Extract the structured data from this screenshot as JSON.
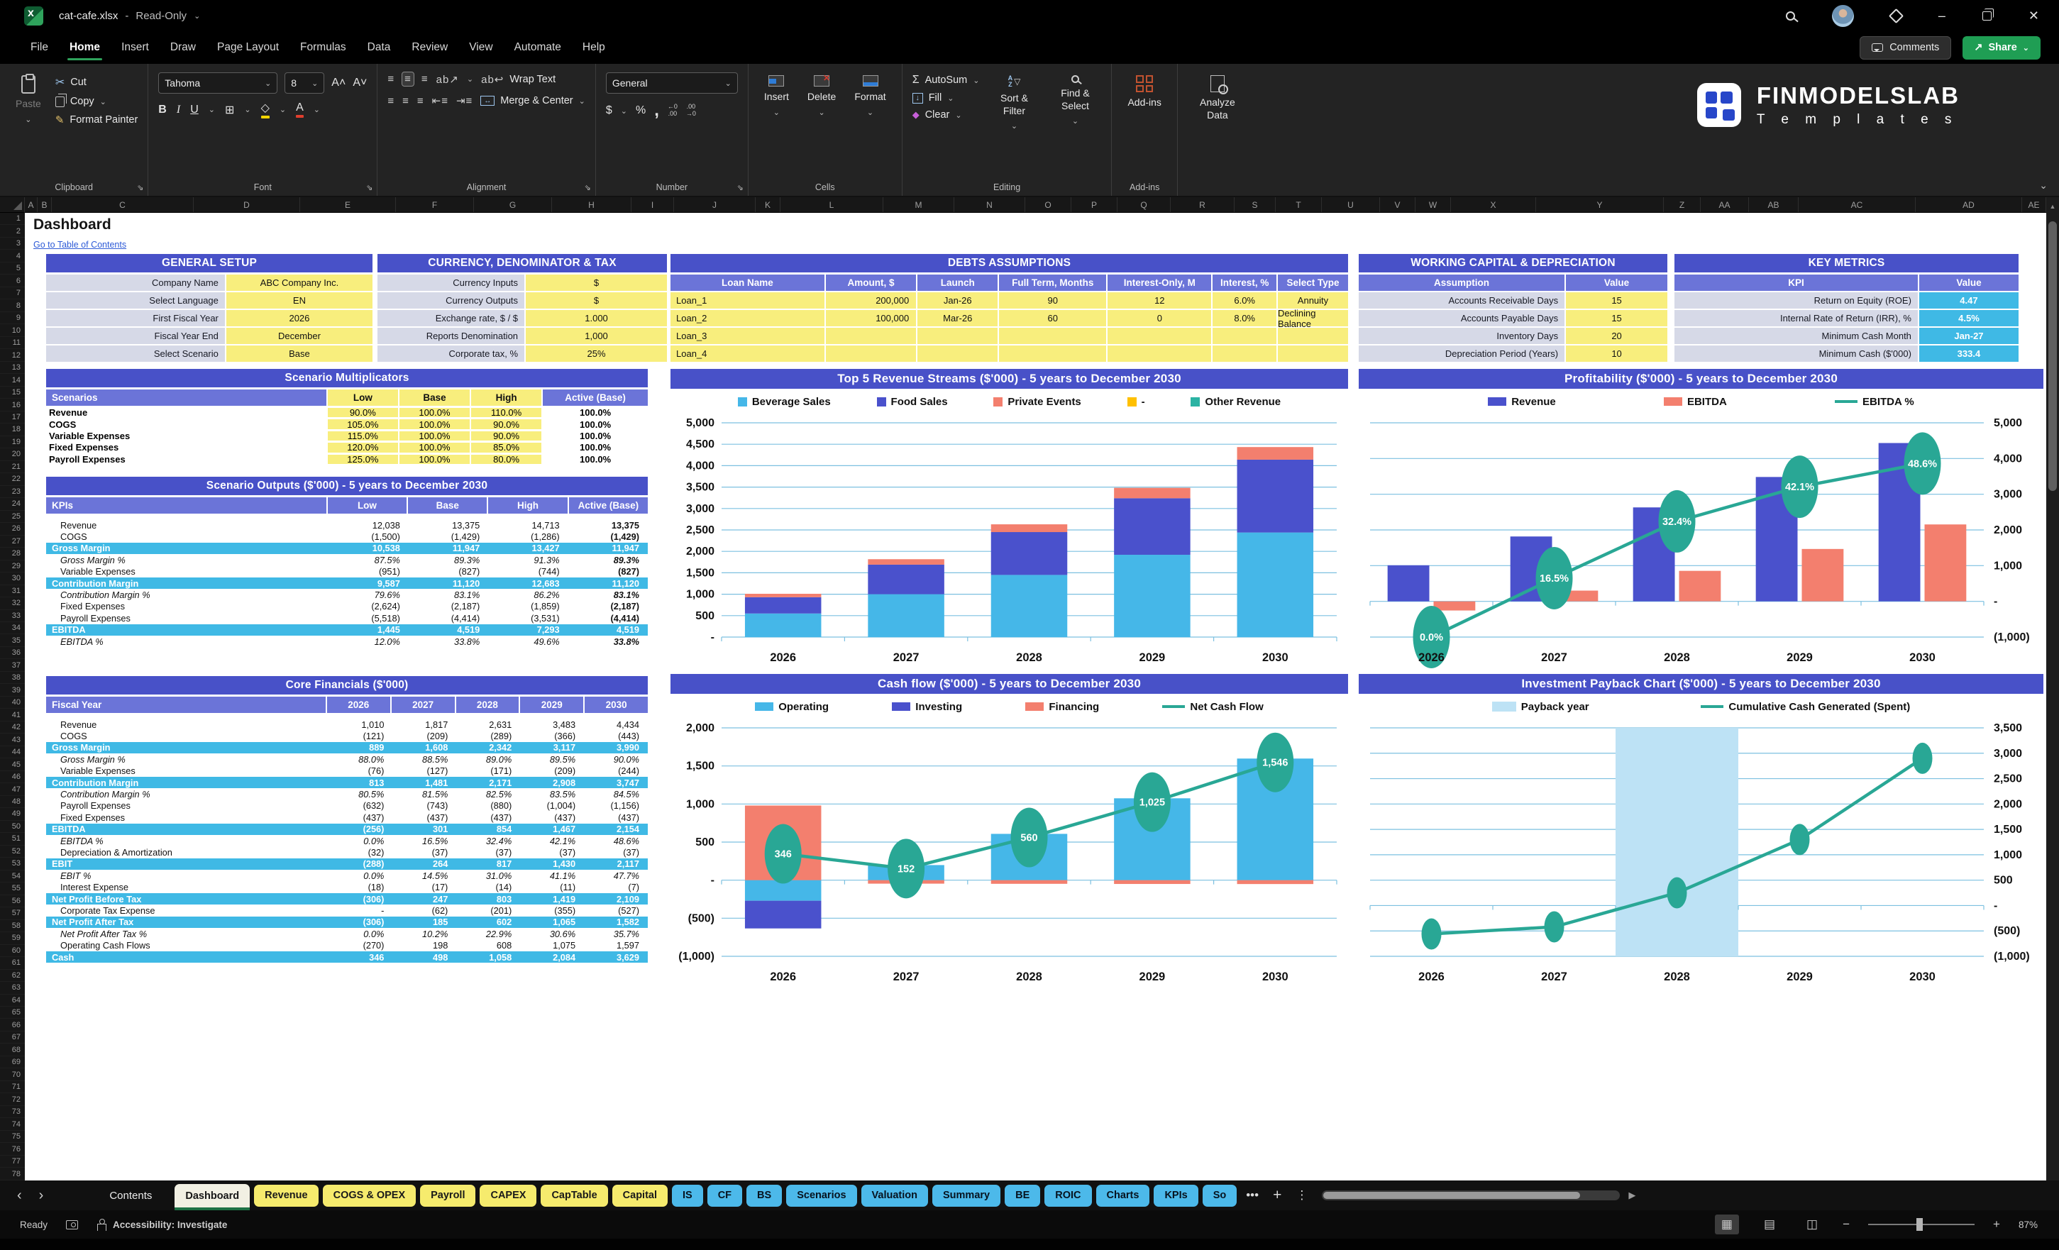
{
  "window": {
    "title": "cat-cafe.xlsx",
    "separator": "-",
    "mode": "Read-Only"
  },
  "icons": {
    "chev": "⌄",
    "up": "▲",
    "left": "‹",
    "right": "›",
    "more": "•••",
    "plus": "+",
    "kebab": "⋮",
    "scroll_right": "▶",
    "collapse": "⌄",
    "minimize": "–",
    "close": "✕"
  },
  "menu": {
    "items": [
      "File",
      "Home",
      "Insert",
      "Draw",
      "Page Layout",
      "Formulas",
      "Data",
      "Review",
      "View",
      "Automate",
      "Help"
    ],
    "active_index": 1
  },
  "actions": {
    "comments": "Comments",
    "share": "Share"
  },
  "ribbon": {
    "clipboard": {
      "paste": "Paste",
      "cut": "Cut",
      "copy": "Copy",
      "format_painter": "Format Painter",
      "label": "Clipboard"
    },
    "font": {
      "family": "Tahoma",
      "size": "8",
      "bold": "B",
      "italic": "I",
      "underline": "U",
      "label": "Font"
    },
    "alignment": {
      "wrap": "Wrap Text",
      "merge": "Merge & Center",
      "label": "Alignment"
    },
    "number": {
      "format": "General",
      "currency": "$",
      "percent": "%",
      "comma": ",",
      "label": "Number"
    },
    "cells": {
      "insert": "Insert",
      "delete": "Delete",
      "format": "Format",
      "label": "Cells"
    },
    "editing": {
      "autosum": "AutoSum",
      "fill": "Fill",
      "clear": "Clear",
      "sort": "Sort & Filter",
      "find": "Find & Select",
      "label": "Editing"
    },
    "addins": {
      "button": "Add-ins",
      "label": "Add-ins",
      "analyze": "Analyze Data"
    }
  },
  "brand": {
    "name": "FINMODELSLAB",
    "sub": "T e m p l a t e s"
  },
  "grid": {
    "columns": [
      "A",
      "B",
      "C",
      "D",
      "E",
      "F",
      "G",
      "H",
      "I",
      "J",
      "K",
      "L",
      "M",
      "N",
      "O",
      "P",
      "Q",
      "R",
      "S",
      "T",
      "U",
      "V",
      "W",
      "X",
      "Y",
      "Z",
      "AA",
      "AB",
      "AC",
      "AD",
      "AE"
    ],
    "rows": 78
  },
  "sheet": {
    "a1": "Dashboard",
    "toc_link": "Go to Table of Contents"
  },
  "tables": {
    "general_setup": {
      "title": "GENERAL SETUP",
      "rows": [
        [
          "Company Name",
          "ABC Company Inc."
        ],
        [
          "Select Language",
          "EN"
        ],
        [
          "First Fiscal Year",
          "2026"
        ],
        [
          "Fiscal Year End",
          "December"
        ],
        [
          "Select Scenario",
          "Base"
        ]
      ]
    },
    "currency_tax": {
      "title": "CURRENCY, DENOMINATOR & TAX",
      "rows": [
        [
          "Currency Inputs",
          "$"
        ],
        [
          "Currency Outputs",
          "$"
        ],
        [
          "Exchange rate, $ / $",
          "1.000"
        ],
        [
          "Reports Denomination",
          "1,000"
        ],
        [
          "Corporate tax, %",
          "25%"
        ]
      ]
    },
    "debts": {
      "title": "DEBTS ASSUMPTIONS",
      "headers": [
        "Loan Name",
        "Amount, $",
        "Launch",
        "Full Term, Months",
        "Interest-Only, M",
        "Interest, %",
        "Select Type"
      ],
      "rows": [
        [
          "Loan_1",
          "200,000",
          "Jan-26",
          "90",
          "12",
          "6.0%",
          "Annuity"
        ],
        [
          "Loan_2",
          "100,000",
          "Mar-26",
          "60",
          "0",
          "8.0%",
          "Declining Balance"
        ],
        [
          "Loan_3",
          "",
          "",
          "",
          "",
          "",
          ""
        ],
        [
          "Loan_4",
          "",
          "",
          "",
          "",
          "",
          ""
        ]
      ]
    },
    "working_capital": {
      "title": "WORKING CAPITAL & DEPRECIATION",
      "headers": [
        "Assumption",
        "Value"
      ],
      "rows": [
        [
          "Accounts Receivable Days",
          "15"
        ],
        [
          "Accounts Payable Days",
          "15"
        ],
        [
          "Inventory Days",
          "20"
        ],
        [
          "Depreciation Period (Years)",
          "10"
        ]
      ]
    },
    "key_metrics": {
      "title": "KEY METRICS",
      "headers": [
        "KPI",
        "Value"
      ],
      "rows": [
        [
          "Return on Equity (ROE)",
          "4.47"
        ],
        [
          "Internal Rate of Return (IRR), %",
          "4.5%"
        ],
        [
          "Minimum Cash Month",
          "Jan-27"
        ],
        [
          "Minimum Cash ($'000)",
          "333.4"
        ]
      ]
    },
    "scenario_multipliers": {
      "title": "Scenario Multiplicators",
      "headers": [
        "Scenarios",
        "Low",
        "Base",
        "High",
        "Active (Base)"
      ],
      "rows": [
        [
          "Revenue",
          "90.0%",
          "100.0%",
          "110.0%",
          "100.0%"
        ],
        [
          "COGS",
          "105.0%",
          "100.0%",
          "90.0%",
          "100.0%"
        ],
        [
          "Variable Expenses",
          "115.0%",
          "100.0%",
          "90.0%",
          "100.0%"
        ],
        [
          "Fixed Expenses",
          "120.0%",
          "100.0%",
          "85.0%",
          "100.0%"
        ],
        [
          "Payroll Expenses",
          "125.0%",
          "100.0%",
          "80.0%",
          "100.0%"
        ]
      ]
    },
    "scenario_outputs": {
      "title": "Scenario Outputs ($'000) - 5 years to December 2030",
      "headers": [
        "KPIs",
        "Low",
        "Base",
        "High",
        "Active (Base)"
      ],
      "rows": [
        {
          "label": "Revenue",
          "values": [
            "12,038",
            "13,375",
            "14,713",
            "13,375"
          ],
          "style": "plain"
        },
        {
          "label": "COGS",
          "values": [
            "(1,500)",
            "(1,429)",
            "(1,286)",
            "(1,429)"
          ],
          "style": "plain"
        },
        {
          "label": "Gross Margin",
          "values": [
            "10,538",
            "11,947",
            "13,427",
            "11,947"
          ],
          "style": "band"
        },
        {
          "label": "Gross Margin %",
          "values": [
            "87.5%",
            "89.3%",
            "91.3%",
            "89.3%"
          ],
          "style": "pct"
        },
        {
          "label": "Variable Expenses",
          "values": [
            "(951)",
            "(827)",
            "(744)",
            "(827)"
          ],
          "style": "plain"
        },
        {
          "label": "Contribution Margin",
          "values": [
            "9,587",
            "11,120",
            "12,683",
            "11,120"
          ],
          "style": "band"
        },
        {
          "label": "Contribution Margin %",
          "values": [
            "79.6%",
            "83.1%",
            "86.2%",
            "83.1%"
          ],
          "style": "pct"
        },
        {
          "label": "Fixed Expenses",
          "values": [
            "(2,624)",
            "(2,187)",
            "(1,859)",
            "(2,187)"
          ],
          "style": "plain"
        },
        {
          "label": "Payroll Expenses",
          "values": [
            "(5,518)",
            "(4,414)",
            "(3,531)",
            "(4,414)"
          ],
          "style": "plain"
        },
        {
          "label": "EBITDA",
          "values": [
            "1,445",
            "4,519",
            "7,293",
            "4,519"
          ],
          "style": "band"
        },
        {
          "label": "EBITDA %",
          "values": [
            "12.0%",
            "33.8%",
            "49.6%",
            "33.8%"
          ],
          "style": "pct"
        }
      ]
    },
    "core_financials": {
      "title": "Core Financials ($'000)",
      "headers": [
        "Fiscal Year",
        "2026",
        "2027",
        "2028",
        "2029",
        "2030"
      ],
      "rows": [
        {
          "label": "Revenue",
          "values": [
            "1,010",
            "1,817",
            "2,631",
            "3,483",
            "4,434"
          ],
          "style": "plain"
        },
        {
          "label": "COGS",
          "values": [
            "(121)",
            "(209)",
            "(289)",
            "(366)",
            "(443)"
          ],
          "style": "plain"
        },
        {
          "label": "Gross Margin",
          "values": [
            "889",
            "1,608",
            "2,342",
            "3,117",
            "3,990"
          ],
          "style": "band"
        },
        {
          "label": "Gross Margin %",
          "values": [
            "88.0%",
            "88.5%",
            "89.0%",
            "89.5%",
            "90.0%"
          ],
          "style": "pct"
        },
        {
          "label": "Variable Expenses",
          "values": [
            "(76)",
            "(127)",
            "(171)",
            "(209)",
            "(244)"
          ],
          "style": "plain"
        },
        {
          "label": "Contribution Margin",
          "values": [
            "813",
            "1,481",
            "2,171",
            "2,908",
            "3,747"
          ],
          "style": "band"
        },
        {
          "label": "Contribution Margin %",
          "values": [
            "80.5%",
            "81.5%",
            "82.5%",
            "83.5%",
            "84.5%"
          ],
          "style": "pct"
        },
        {
          "label": "Payroll Expenses",
          "values": [
            "(632)",
            "(743)",
            "(880)",
            "(1,004)",
            "(1,156)"
          ],
          "style": "plain"
        },
        {
          "label": "Fixed Expenses",
          "values": [
            "(437)",
            "(437)",
            "(437)",
            "(437)",
            "(437)"
          ],
          "style": "plain"
        },
        {
          "label": "EBITDA",
          "values": [
            "(256)",
            "301",
            "854",
            "1,467",
            "2,154"
          ],
          "style": "band"
        },
        {
          "label": "EBITDA %",
          "values": [
            "0.0%",
            "16.5%",
            "32.4%",
            "42.1%",
            "48.6%"
          ],
          "style": "pct"
        },
        {
          "label": "Depreciation & Amortization",
          "values": [
            "(32)",
            "(37)",
            "(37)",
            "(37)",
            "(37)"
          ],
          "style": "plain"
        },
        {
          "label": "EBIT",
          "values": [
            "(288)",
            "264",
            "817",
            "1,430",
            "2,117"
          ],
          "style": "band"
        },
        {
          "label": "EBIT %",
          "values": [
            "0.0%",
            "14.5%",
            "31.0%",
            "41.1%",
            "47.7%"
          ],
          "style": "pct"
        },
        {
          "label": "Interest Expense",
          "values": [
            "(18)",
            "(17)",
            "(14)",
            "(11)",
            "(7)"
          ],
          "style": "plain"
        },
        {
          "label": "Net Profit Before Tax",
          "values": [
            "(306)",
            "247",
            "803",
            "1,419",
            "2,109"
          ],
          "style": "band"
        },
        {
          "label": "Corporate Tax Expense",
          "values": [
            "-",
            "(62)",
            "(201)",
            "(355)",
            "(527)"
          ],
          "style": "plain"
        },
        {
          "label": "Net Profit After Tax",
          "values": [
            "(306)",
            "185",
            "602",
            "1,065",
            "1,582"
          ],
          "style": "band"
        },
        {
          "label": "Net Profit After Tax %",
          "values": [
            "0.0%",
            "10.2%",
            "22.9%",
            "30.6%",
            "35.7%"
          ],
          "style": "pct"
        },
        {
          "label": "Operating Cash Flows",
          "values": [
            "(270)",
            "198",
            "608",
            "1,075",
            "1,597"
          ],
          "style": "plain"
        },
        {
          "label": "Cash",
          "values": [
            "346",
            "498",
            "1,058",
            "2,084",
            "3,629"
          ],
          "style": "band"
        }
      ]
    }
  },
  "chart_data": [
    {
      "id": "revenue_streams",
      "type": "bar-stacked",
      "title": "Top 5 Revenue Streams ($'000) - 5 years to December 2030",
      "categories": [
        "2026",
        "2027",
        "2028",
        "2029",
        "2030"
      ],
      "series": [
        {
          "name": "Beverage Sales",
          "color": "#45b7e8",
          "values": [
            550,
            1000,
            1450,
            1920,
            2440
          ]
        },
        {
          "name": "Food Sales",
          "color": "#4a51cc",
          "values": [
            380,
            690,
            1000,
            1320,
            1700
          ]
        },
        {
          "name": "Private Events",
          "color": "#f37f6e",
          "values": [
            80,
            127,
            181,
            243,
            294
          ]
        },
        {
          "name": "-",
          "color": "#ffc000",
          "values": [
            0,
            0,
            0,
            0,
            0
          ]
        },
        {
          "name": "Other Revenue",
          "color": "#2bb3a3",
          "values": [
            0,
            0,
            0,
            0,
            0
          ]
        }
      ],
      "ylim": [
        0,
        5000
      ],
      "ytick": 500,
      "axis_side": "left",
      "grid": true,
      "chip": "square",
      "bar_frac": 0.62,
      "legend_position": "top"
    },
    {
      "id": "profitability",
      "type": "bar-grouped-line",
      "title": "Profitability ($'000) - 5 years to December 2030",
      "categories": [
        "2026",
        "2027",
        "2028",
        "2029",
        "2030"
      ],
      "series": [
        {
          "name": "Revenue",
          "color": "#4a51cc",
          "values": [
            1010,
            1817,
            2631,
            3483,
            4434
          ]
        },
        {
          "name": "EBITDA",
          "color": "#f37f6e",
          "values": [
            -256,
            301,
            854,
            1467,
            2154
          ]
        }
      ],
      "line": {
        "name": "EBITDA %",
        "color": "#29a795",
        "values": [
          0.0,
          16.5,
          32.4,
          42.1,
          48.6
        ],
        "labels": [
          "0.0%",
          "16.5%",
          "32.4%",
          "42.1%",
          "48.6%"
        ],
        "secondary_axis": [
          0,
          60
        ]
      },
      "ylim": [
        -1000,
        5000
      ],
      "ytick": 1000,
      "axis_side": "right",
      "grid": true,
      "chip": "rect",
      "bar_frac": 0.34,
      "marker": {
        "rx": 26,
        "ry": 44,
        "label": true
      }
    },
    {
      "id": "cash_flow",
      "type": "bar-stacked-line",
      "title": "Cash flow ($'000) - 5 years to December 2030",
      "categories": [
        "2026",
        "2027",
        "2028",
        "2029",
        "2030"
      ],
      "series": [
        {
          "name": "Operating",
          "color": "#45b7e8",
          "values": [
            -270,
            198,
            608,
            1075,
            1597
          ]
        },
        {
          "name": "Investing",
          "color": "#4a51cc",
          "values": [
            -364,
            0,
            0,
            0,
            0
          ]
        },
        {
          "name": "Financing",
          "color": "#f37f6e",
          "values": [
            980,
            -46,
            -48,
            -50,
            -51
          ]
        }
      ],
      "line": {
        "name": "Net Cash Flow",
        "color": "#29a795",
        "values": [
          346,
          152,
          560,
          1025,
          1546
        ],
        "labels": [
          "346",
          "152",
          "560",
          "1,025",
          "1,546"
        ]
      },
      "ylim": [
        -1000,
        2000
      ],
      "ytick": 500,
      "axis_side": "left",
      "grid": true,
      "chip": "rect",
      "bar_frac": 0.62,
      "marker": {
        "rx": 26,
        "ry": 42,
        "label": true
      }
    },
    {
      "id": "payback",
      "type": "line-band",
      "title": "Investment Payback Chart ($'000) - 5 years to December 2030",
      "categories": [
        "2026",
        "2027",
        "2028",
        "2029",
        "2030"
      ],
      "band": {
        "name": "Payback year",
        "color": "#bde2f5",
        "category": "2028"
      },
      "line": {
        "name": "Cumulative Cash Generated (Spent)",
        "color": "#29a795",
        "values": [
          -560,
          -420,
          250,
          1300,
          2900
        ]
      },
      "ylim": [
        -1000,
        3500
      ],
      "ytick": 500,
      "axis_side": "right",
      "grid": true,
      "chip": "band",
      "marker": {
        "rx": 14,
        "ry": 22,
        "label": false
      }
    }
  ],
  "tabs": {
    "items": [
      {
        "label": "Contents",
        "type": "plain"
      },
      {
        "label": "Dashboard",
        "type": "active"
      },
      {
        "label": "Revenue",
        "type": "yellow"
      },
      {
        "label": "COGS & OPEX",
        "type": "yellow"
      },
      {
        "label": "Payroll",
        "type": "yellow"
      },
      {
        "label": "CAPEX",
        "type": "yellow"
      },
      {
        "label": "CapTable",
        "type": "yellow"
      },
      {
        "label": "Capital",
        "type": "yellow"
      },
      {
        "label": "IS",
        "type": "blue"
      },
      {
        "label": "CF",
        "type": "blue"
      },
      {
        "label": "BS",
        "type": "blue"
      },
      {
        "label": "Scenarios",
        "type": "blue"
      },
      {
        "label": "Valuation",
        "type": "blue"
      },
      {
        "label": "Summary",
        "type": "blue"
      },
      {
        "label": "BE",
        "type": "blue"
      },
      {
        "label": "ROIC",
        "type": "blue"
      },
      {
        "label": "Charts",
        "type": "blue"
      },
      {
        "label": "KPIs",
        "type": "blue"
      },
      {
        "label": "So",
        "type": "blue"
      }
    ]
  },
  "status": {
    "ready": "Ready",
    "accessibility": "Accessibility: Investigate",
    "zoom_level": "87%"
  }
}
